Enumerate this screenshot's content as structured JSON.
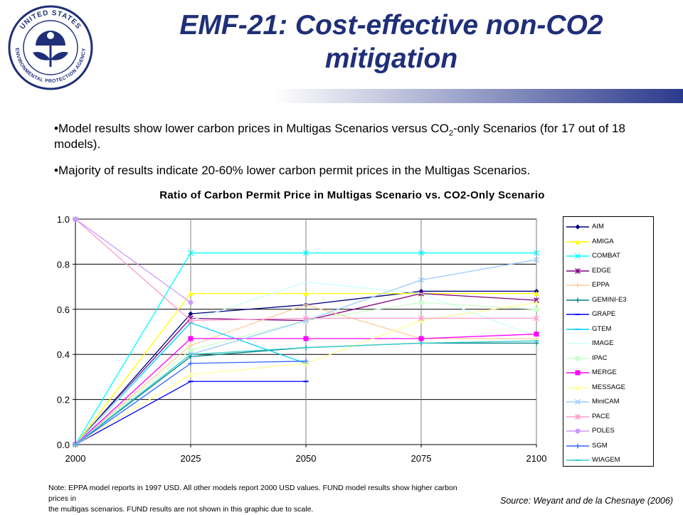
{
  "slide": {
    "title_line1": "EMF-21: Cost-effective non-CO2",
    "title_line2": "mitigation",
    "logo_text_top": "UNITED STATES",
    "logo_text_bottom": "ENVIRONMENTAL PROTECTION AGENCY",
    "bullet1_pre": "•Model results show lower carbon prices in Multigas Scenarios versus CO",
    "bullet1_sub": "2",
    "bullet1_post": "-only Scenarios (for 17 out of 18 models).",
    "bullet2": "•Majority of results indicate 20-60% lower carbon permit prices in the Multigas Scenarios.",
    "note_line1": "Note: EPPA model reports in 1997 USD.  All other models report 2000 USD values.  FUND model results show higher carbon prices in",
    "note_line2": "the multigas scenarios.  FUND results are not shown in this graphic due to scale.",
    "source": "Source: Weyant and de la Chesnaye (2006)",
    "brand_blue": "#1f2f78",
    "band_color": "#2b3a8c"
  },
  "chart_data": {
    "type": "line",
    "title": "Ratio of Carbon Permit Price in Multigas Scenario vs. CO2-Only Scenario",
    "xlabel": "",
    "ylabel": "",
    "x": [
      2000,
      2025,
      2050,
      2075,
      2100
    ],
    "x_tick_labels": [
      "2000",
      "2025",
      "2050",
      "2075",
      "2100"
    ],
    "ylim": [
      0,
      1
    ],
    "y_tick_labels": [
      "0.0",
      "0.2",
      "0.4",
      "0.6",
      "0.8",
      "1.0"
    ],
    "grid": "horizontal",
    "legend_position": "right",
    "series": [
      {
        "name": "AIM",
        "color": "#000080",
        "marker": "diamond",
        "values": [
          0,
          0.58,
          0.62,
          0.68,
          0.68
        ]
      },
      {
        "name": "AMIGA",
        "color": "#ffff00",
        "marker": "triangle",
        "values": [
          0,
          0.67,
          0.67,
          0.67,
          0.67
        ]
      },
      {
        "name": "COMBAT",
        "color": "#00ffff",
        "marker": "x",
        "values": [
          0,
          0.85,
          0.85,
          0.85,
          0.85
        ]
      },
      {
        "name": "EDGE",
        "color": "#800080",
        "marker": "star",
        "values": [
          0,
          0.56,
          0.55,
          0.67,
          0.64
        ]
      },
      {
        "name": "EPPA",
        "color": "#ffcc99",
        "marker": "plus",
        "values": [
          0,
          0.44,
          0.62,
          0.47,
          0.47
        ]
      },
      {
        "name": "GEMINI-E3",
        "color": "#008080",
        "marker": "plus",
        "values": [
          0,
          0.39,
          0.43,
          0.45,
          0.45
        ]
      },
      {
        "name": "GRAPE",
        "color": "#0000ff",
        "marker": "dash",
        "values": [
          0,
          0.28,
          0.28,
          null,
          null
        ]
      },
      {
        "name": "GTEM",
        "color": "#00ccff",
        "marker": "dash",
        "values": [
          0,
          0.54,
          0.36,
          null,
          null
        ]
      },
      {
        "name": "IMAGE",
        "color": "#ccffff",
        "marker": "none",
        "values": [
          0,
          0.55,
          0.72,
          0.67,
          0.48
        ]
      },
      {
        "name": "IPAC",
        "color": "#ccffcc",
        "marker": "square",
        "values": [
          0,
          0.42,
          0.55,
          0.63,
          0.6
        ]
      },
      {
        "name": "MERGE",
        "color": "#ff00ff",
        "marker": "square",
        "values": [
          0,
          0.47,
          0.47,
          0.47,
          0.49
        ]
      },
      {
        "name": "MESSAGE",
        "color": "#ffff99",
        "marker": "triangle",
        "values": [
          0,
          0.31,
          0.36,
          0.55,
          0.63
        ]
      },
      {
        "name": "MiniCAM",
        "color": "#99ccff",
        "marker": "x",
        "values": [
          0,
          0.4,
          0.55,
          0.73,
          0.82
        ]
      },
      {
        "name": "PACE",
        "color": "#ff99cc",
        "marker": "star",
        "values": [
          1,
          0.55,
          0.56,
          0.56,
          0.56
        ]
      },
      {
        "name": "POLES",
        "color": "#cc99ff",
        "marker": "circle",
        "values": [
          1,
          0.63,
          null,
          null,
          null
        ]
      },
      {
        "name": "SGM",
        "color": "#3366ff",
        "marker": "plus",
        "values": [
          0,
          0.36,
          0.37,
          null,
          null
        ]
      },
      {
        "name": "WIAGEM",
        "color": "#33cccc",
        "marker": "dash",
        "values": [
          0,
          0.4,
          0.43,
          0.45,
          0.46
        ]
      }
    ]
  }
}
